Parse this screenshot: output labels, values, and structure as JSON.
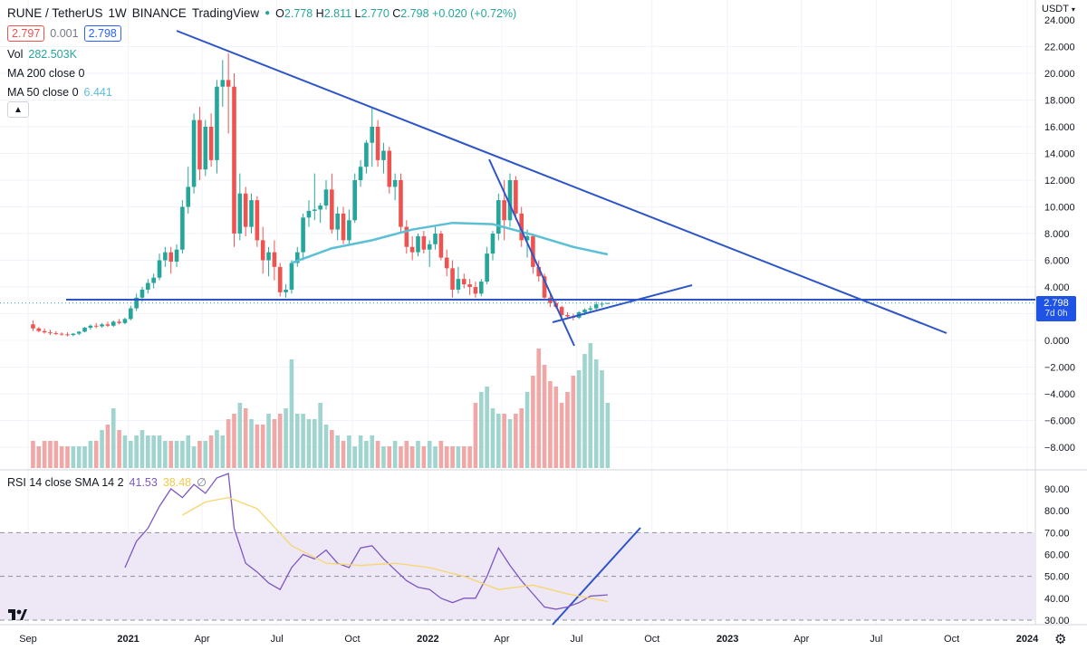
{
  "header": {
    "symbol": "RUNE / TetherUS",
    "interval": "1W",
    "exchange": "BINANCE",
    "source": "TradingView",
    "ohlc": {
      "o_label": "O",
      "o": "2.778",
      "h_label": "H",
      "h": "2.811",
      "l_label": "L",
      "l": "2.770",
      "c_label": "C",
      "c": "2.798",
      "change": "+0.020 (+0.72%)"
    },
    "bid": "2.797",
    "spread": "0.001",
    "ask": "2.798"
  },
  "indicators": {
    "vol_label": "Vol",
    "vol_value": "282.503K",
    "ma200_label": "MA 200 close 0",
    "ma50_label": "MA 50 close 0",
    "ma50_value": "6.441",
    "rsi_label": "RSI 14 close SMA 14 2",
    "rsi_value": "41.53",
    "rsi_sma_value": "38.48",
    "rsi_na": "∅"
  },
  "price_axis": {
    "currency": "USDT",
    "ticks": [
      "24.000",
      "22.000",
      "20.000",
      "18.000",
      "16.000",
      "14.000",
      "12.000",
      "10.000",
      "8.000",
      "6.000",
      "4.000",
      "2.000",
      "0.000",
      "−2.000",
      "−4.000",
      "−6.000",
      "−8.000"
    ],
    "last_price": "2.798",
    "countdown": "7d 0h"
  },
  "rsi_axis": {
    "ticks": [
      "90.00",
      "80.00",
      "70.00",
      "60.00",
      "50.00",
      "40.00",
      "30.00"
    ]
  },
  "time_axis": {
    "labels": [
      "Sep",
      "2021",
      "Apr",
      "Jul",
      "Oct",
      "2022",
      "Apr",
      "Jul",
      "Oct",
      "2023",
      "Apr",
      "Jul",
      "Oct",
      "2024"
    ]
  },
  "colors": {
    "up": "#26a69a",
    "down": "#ef5350",
    "vol_up": "#9fd4cf",
    "vol_down": "#f0a7a5",
    "ma50": "#5bc0d6",
    "trend": "#2d55c8",
    "rsi": "#7e57c2",
    "rsi_sma": "#f5d76e",
    "rsi_band": "#ede7f6"
  },
  "chart_data": [
    {
      "type": "candlestick",
      "interval": "1W",
      "ylim": [
        -9,
        24
      ],
      "candles": [
        {
          "date": "2020-09-07",
          "o": 1.2,
          "h": 1.5,
          "l": 0.7,
          "c": 0.9
        },
        {
          "date": "2020-09-14",
          "o": 0.9,
          "h": 1.0,
          "l": 0.6,
          "c": 0.7
        },
        {
          "date": "2020-09-21",
          "o": 0.7,
          "h": 0.9,
          "l": 0.5,
          "c": 0.6
        },
        {
          "date": "2020-09-28",
          "o": 0.6,
          "h": 0.8,
          "l": 0.4,
          "c": 0.55
        },
        {
          "date": "2020-10-05",
          "o": 0.55,
          "h": 0.7,
          "l": 0.4,
          "c": 0.5
        },
        {
          "date": "2020-10-12",
          "o": 0.5,
          "h": 0.6,
          "l": 0.35,
          "c": 0.45
        },
        {
          "date": "2020-10-19",
          "o": 0.45,
          "h": 0.6,
          "l": 0.3,
          "c": 0.4
        },
        {
          "date": "2020-10-26",
          "o": 0.4,
          "h": 0.55,
          "l": 0.3,
          "c": 0.5
        },
        {
          "date": "2020-11-02",
          "o": 0.5,
          "h": 0.7,
          "l": 0.4,
          "c": 0.65
        },
        {
          "date": "2020-11-09",
          "o": 0.65,
          "h": 1.0,
          "l": 0.6,
          "c": 0.95
        },
        {
          "date": "2020-11-16",
          "o": 0.95,
          "h": 1.2,
          "l": 0.8,
          "c": 1.1
        },
        {
          "date": "2020-11-23",
          "o": 1.1,
          "h": 1.3,
          "l": 0.9,
          "c": 1.05
        },
        {
          "date": "2020-11-30",
          "o": 1.05,
          "h": 1.3,
          "l": 0.95,
          "c": 1.2
        },
        {
          "date": "2020-12-07",
          "o": 1.2,
          "h": 1.4,
          "l": 1.0,
          "c": 1.1
        },
        {
          "date": "2020-12-14",
          "o": 1.1,
          "h": 1.5,
          "l": 1.0,
          "c": 1.4
        },
        {
          "date": "2020-12-21",
          "o": 1.4,
          "h": 1.6,
          "l": 1.2,
          "c": 1.3
        },
        {
          "date": "2020-12-28",
          "o": 1.3,
          "h": 1.7,
          "l": 1.2,
          "c": 1.6
        },
        {
          "date": "2021-01-04",
          "o": 1.6,
          "h": 2.6,
          "l": 1.5,
          "c": 2.4
        },
        {
          "date": "2021-01-11",
          "o": 2.4,
          "h": 3.5,
          "l": 2.2,
          "c": 3.2
        },
        {
          "date": "2021-01-18",
          "o": 3.2,
          "h": 4.0,
          "l": 2.9,
          "c": 3.8
        },
        {
          "date": "2021-01-25",
          "o": 3.8,
          "h": 4.6,
          "l": 3.5,
          "c": 4.3
        },
        {
          "date": "2021-02-01",
          "o": 4.3,
          "h": 5.0,
          "l": 3.9,
          "c": 4.7
        },
        {
          "date": "2021-02-08",
          "o": 4.7,
          "h": 6.5,
          "l": 4.5,
          "c": 6.0
        },
        {
          "date": "2021-02-15",
          "o": 6.0,
          "h": 7.0,
          "l": 5.5,
          "c": 6.6
        },
        {
          "date": "2021-02-22",
          "o": 6.6,
          "h": 7.0,
          "l": 5.0,
          "c": 5.9
        },
        {
          "date": "2021-03-01",
          "o": 5.9,
          "h": 7.2,
          "l": 5.5,
          "c": 6.8
        },
        {
          "date": "2021-03-08",
          "o": 6.8,
          "h": 10.5,
          "l": 6.5,
          "c": 10.0
        },
        {
          "date": "2021-03-15",
          "o": 10.0,
          "h": 13.0,
          "l": 9.5,
          "c": 11.5
        },
        {
          "date": "2021-03-22",
          "o": 11.5,
          "h": 17.0,
          "l": 11.0,
          "c": 16.5
        },
        {
          "date": "2021-03-29",
          "o": 16.5,
          "h": 17.5,
          "l": 12.0,
          "c": 12.8
        },
        {
          "date": "2021-04-05",
          "o": 12.8,
          "h": 16.5,
          "l": 12.3,
          "c": 16.0
        },
        {
          "date": "2021-04-12",
          "o": 16.0,
          "h": 17.0,
          "l": 13.0,
          "c": 13.5
        },
        {
          "date": "2021-04-19",
          "o": 13.5,
          "h": 19.5,
          "l": 12.5,
          "c": 19.0
        },
        {
          "date": "2021-04-26",
          "o": 19.0,
          "h": 21.0,
          "l": 17.5,
          "c": 19.5
        },
        {
          "date": "2021-05-03",
          "o": 19.5,
          "h": 21.5,
          "l": 15.5,
          "c": 19.0
        },
        {
          "date": "2021-05-10",
          "o": 19.0,
          "h": 20.0,
          "l": 7.0,
          "c": 8.0
        },
        {
          "date": "2021-05-17",
          "o": 8.0,
          "h": 12.5,
          "l": 7.5,
          "c": 11.0
        },
        {
          "date": "2021-05-24",
          "o": 11.0,
          "h": 11.5,
          "l": 7.8,
          "c": 8.5
        },
        {
          "date": "2021-05-31",
          "o": 8.5,
          "h": 11.0,
          "l": 8.0,
          "c": 10.5
        },
        {
          "date": "2021-06-07",
          "o": 10.5,
          "h": 10.8,
          "l": 7.0,
          "c": 7.5
        },
        {
          "date": "2021-06-14",
          "o": 7.5,
          "h": 8.5,
          "l": 5.0,
          "c": 6.0
        },
        {
          "date": "2021-06-21",
          "o": 6.0,
          "h": 7.0,
          "l": 4.8,
          "c": 6.6
        },
        {
          "date": "2021-06-28",
          "o": 6.6,
          "h": 7.5,
          "l": 4.5,
          "c": 5.5
        },
        {
          "date": "2021-07-05",
          "o": 5.5,
          "h": 5.8,
          "l": 3.3,
          "c": 3.6
        },
        {
          "date": "2021-07-12",
          "o": 3.6,
          "h": 4.2,
          "l": 3.2,
          "c": 3.8
        },
        {
          "date": "2021-07-19",
          "o": 3.8,
          "h": 6.0,
          "l": 3.5,
          "c": 5.8
        },
        {
          "date": "2021-07-26",
          "o": 5.8,
          "h": 7.0,
          "l": 5.5,
          "c": 6.6
        },
        {
          "date": "2021-08-02",
          "o": 6.6,
          "h": 9.5,
          "l": 6.0,
          "c": 9.2
        },
        {
          "date": "2021-08-09",
          "o": 9.2,
          "h": 10.5,
          "l": 8.5,
          "c": 9.7
        },
        {
          "date": "2021-08-16",
          "o": 9.7,
          "h": 12.5,
          "l": 9.0,
          "c": 9.8
        },
        {
          "date": "2021-08-23",
          "o": 9.8,
          "h": 10.3,
          "l": 8.8,
          "c": 10.1
        },
        {
          "date": "2021-08-30",
          "o": 10.1,
          "h": 12.0,
          "l": 9.8,
          "c": 11.3
        },
        {
          "date": "2021-09-06",
          "o": 11.3,
          "h": 12.5,
          "l": 8.0,
          "c": 8.3
        },
        {
          "date": "2021-09-13",
          "o": 8.3,
          "h": 10.0,
          "l": 7.5,
          "c": 9.5
        },
        {
          "date": "2021-09-20",
          "o": 9.5,
          "h": 10.0,
          "l": 7.2,
          "c": 7.5
        },
        {
          "date": "2021-09-27",
          "o": 7.5,
          "h": 9.8,
          "l": 7.2,
          "c": 9.0
        },
        {
          "date": "2021-10-04",
          "o": 9.0,
          "h": 12.5,
          "l": 8.8,
          "c": 12.0
        },
        {
          "date": "2021-10-11",
          "o": 12.0,
          "h": 13.5,
          "l": 11.5,
          "c": 13.0
        },
        {
          "date": "2021-10-18",
          "o": 13.0,
          "h": 15.0,
          "l": 12.5,
          "c": 14.8
        },
        {
          "date": "2021-10-25",
          "o": 14.8,
          "h": 17.5,
          "l": 13.0,
          "c": 16.0
        },
        {
          "date": "2021-11-01",
          "o": 16.0,
          "h": 16.5,
          "l": 13.0,
          "c": 13.5
        },
        {
          "date": "2021-11-08",
          "o": 13.5,
          "h": 14.8,
          "l": 12.5,
          "c": 14.2
        },
        {
          "date": "2021-11-15",
          "o": 14.2,
          "h": 14.5,
          "l": 11.0,
          "c": 11.5
        },
        {
          "date": "2021-11-22",
          "o": 11.5,
          "h": 12.5,
          "l": 10.5,
          "c": 12.0
        },
        {
          "date": "2021-11-29",
          "o": 12.0,
          "h": 12.5,
          "l": 8.0,
          "c": 8.5
        },
        {
          "date": "2021-12-06",
          "o": 8.5,
          "h": 9.0,
          "l": 6.5,
          "c": 7.0
        },
        {
          "date": "2021-12-13",
          "o": 7.0,
          "h": 7.8,
          "l": 6.0,
          "c": 6.6
        },
        {
          "date": "2021-12-20",
          "o": 6.6,
          "h": 8.0,
          "l": 6.3,
          "c": 7.8
        },
        {
          "date": "2021-12-27",
          "o": 7.8,
          "h": 8.2,
          "l": 6.5,
          "c": 6.8
        },
        {
          "date": "2022-01-03",
          "o": 6.8,
          "h": 7.5,
          "l": 5.5,
          "c": 7.2
        },
        {
          "date": "2022-01-10",
          "o": 7.2,
          "h": 8.5,
          "l": 6.8,
          "c": 8.0
        },
        {
          "date": "2022-01-17",
          "o": 8.0,
          "h": 8.2,
          "l": 6.0,
          "c": 6.2
        },
        {
          "date": "2022-01-24",
          "o": 6.2,
          "h": 6.8,
          "l": 4.8,
          "c": 5.4
        },
        {
          "date": "2022-01-31",
          "o": 5.4,
          "h": 6.0,
          "l": 3.2,
          "c": 3.8
        },
        {
          "date": "2022-02-07",
          "o": 3.8,
          "h": 5.5,
          "l": 3.5,
          "c": 4.6
        },
        {
          "date": "2022-02-14",
          "o": 4.6,
          "h": 5.0,
          "l": 3.9,
          "c": 4.2
        },
        {
          "date": "2022-02-21",
          "o": 4.2,
          "h": 4.6,
          "l": 3.4,
          "c": 4.0
        },
        {
          "date": "2022-02-28",
          "o": 4.0,
          "h": 4.4,
          "l": 3.2,
          "c": 3.5
        },
        {
          "date": "2022-03-07",
          "o": 3.5,
          "h": 4.6,
          "l": 3.3,
          "c": 4.4
        },
        {
          "date": "2022-03-14",
          "o": 4.4,
          "h": 7.0,
          "l": 4.2,
          "c": 6.5
        },
        {
          "date": "2022-03-21",
          "o": 6.5,
          "h": 8.2,
          "l": 6.0,
          "c": 8.0
        },
        {
          "date": "2022-03-28",
          "o": 8.0,
          "h": 11.0,
          "l": 7.5,
          "c": 10.5
        },
        {
          "date": "2022-04-04",
          "o": 10.5,
          "h": 12.0,
          "l": 7.5,
          "c": 9.0
        },
        {
          "date": "2022-04-11",
          "o": 9.0,
          "h": 12.5,
          "l": 8.5,
          "c": 12.0
        },
        {
          "date": "2022-04-18",
          "o": 12.0,
          "h": 12.3,
          "l": 9.0,
          "c": 9.5
        },
        {
          "date": "2022-04-25",
          "o": 9.5,
          "h": 10.0,
          "l": 7.0,
          "c": 7.5
        },
        {
          "date": "2022-05-02",
          "o": 7.5,
          "h": 8.3,
          "l": 6.2,
          "c": 7.8
        },
        {
          "date": "2022-05-09",
          "o": 7.8,
          "h": 8.0,
          "l": 5.0,
          "c": 5.5
        },
        {
          "date": "2022-05-16",
          "o": 5.5,
          "h": 6.0,
          "l": 4.4,
          "c": 4.8
        },
        {
          "date": "2022-05-23",
          "o": 4.8,
          "h": 5.0,
          "l": 3.0,
          "c": 3.2
        },
        {
          "date": "2022-05-30",
          "o": 3.2,
          "h": 3.6,
          "l": 2.5,
          "c": 2.8
        },
        {
          "date": "2022-06-06",
          "o": 2.8,
          "h": 3.0,
          "l": 2.4,
          "c": 2.5
        },
        {
          "date": "2022-06-13",
          "o": 2.5,
          "h": 2.6,
          "l": 1.7,
          "c": 1.9
        },
        {
          "date": "2022-06-20",
          "o": 1.9,
          "h": 2.1,
          "l": 1.6,
          "c": 1.8
        },
        {
          "date": "2022-06-27",
          "o": 1.8,
          "h": 2.0,
          "l": 1.5,
          "c": 1.7
        },
        {
          "date": "2022-07-04",
          "o": 1.7,
          "h": 2.2,
          "l": 1.6,
          "c": 2.1
        },
        {
          "date": "2022-07-11",
          "o": 2.1,
          "h": 2.4,
          "l": 1.9,
          "c": 2.3
        },
        {
          "date": "2022-07-18",
          "o": 2.3,
          "h": 2.6,
          "l": 2.1,
          "c": 2.4
        },
        {
          "date": "2022-07-25",
          "o": 2.4,
          "h": 2.9,
          "l": 2.3,
          "c": 2.7
        },
        {
          "date": "2022-08-01",
          "o": 2.7,
          "h": 2.9,
          "l": 2.5,
          "c": 2.75
        },
        {
          "date": "2022-08-08",
          "o": 2.778,
          "h": 2.811,
          "l": 2.77,
          "c": 2.798
        }
      ],
      "volume_relative": [
        0.25,
        0.2,
        0.25,
        0.25,
        0.25,
        0.2,
        0.2,
        0.2,
        0.2,
        0.2,
        0.25,
        0.25,
        0.35,
        0.4,
        0.55,
        0.35,
        0.3,
        0.25,
        0.3,
        0.35,
        0.3,
        0.3,
        0.3,
        0.25,
        0.25,
        0.25,
        0.25,
        0.3,
        0.2,
        0.25,
        0.25,
        0.3,
        0.35,
        0.3,
        0.45,
        0.5,
        0.6,
        0.55,
        0.45,
        0.4,
        0.4,
        0.5,
        0.45,
        0.5,
        0.55,
        1.0,
        0.5,
        0.5,
        0.45,
        0.45,
        0.6,
        0.4,
        0.35,
        0.3,
        0.25,
        0.3,
        0.2,
        0.3,
        0.25,
        0.3,
        0.25,
        0.2,
        0.2,
        0.25,
        0.2,
        0.25,
        0.2,
        0.25,
        0.2,
        0.25,
        0.2,
        0.25,
        0.2,
        0.2,
        0.2,
        0.2,
        0.2,
        0.6,
        0.7,
        0.75,
        0.55,
        0.5,
        0.5,
        0.45,
        0.5,
        0.55,
        0.7,
        0.85,
        1.1,
        0.95,
        0.8,
        0.75,
        0.6,
        0.7,
        0.85,
        0.9,
        1.05,
        1.15,
        1.0,
        0.9,
        0.6
      ]
    },
    {
      "type": "line",
      "name": "MA 50 close 0",
      "x": [
        "2021-07-19",
        "2021-09-06",
        "2021-10-25",
        "2021-12-13",
        "2022-01-31",
        "2022-03-21",
        "2022-05-09",
        "2022-06-27",
        "2022-08-08"
      ],
      "values": [
        5.8,
        6.9,
        7.5,
        8.3,
        8.8,
        8.7,
        7.9,
        7.0,
        6.441
      ]
    },
    {
      "type": "line",
      "title": "RSI 14 close SMA 14 2",
      "ylim": [
        28,
        97
      ],
      "series": [
        {
          "name": "RSI",
          "x": [
            "2020-12-28",
            "2021-01-11",
            "2021-01-25",
            "2021-02-08",
            "2021-02-22",
            "2021-03-08",
            "2021-03-22",
            "2021-04-05",
            "2021-04-19",
            "2021-05-03",
            "2021-05-10",
            "2021-05-24",
            "2021-06-07",
            "2021-06-21",
            "2021-07-05",
            "2021-07-19",
            "2021-08-02",
            "2021-08-16",
            "2021-08-30",
            "2021-09-13",
            "2021-09-27",
            "2021-10-11",
            "2021-10-25",
            "2021-11-08",
            "2021-11-22",
            "2021-12-06",
            "2021-12-20",
            "2022-01-03",
            "2022-01-17",
            "2022-01-31",
            "2022-02-14",
            "2022-02-28",
            "2022-03-14",
            "2022-03-28",
            "2022-04-11",
            "2022-04-25",
            "2022-05-09",
            "2022-05-23",
            "2022-06-06",
            "2022-06-20",
            "2022-07-04",
            "2022-07-18",
            "2022-08-08"
          ],
          "values": [
            54,
            66,
            72,
            82,
            90,
            86,
            92,
            88,
            95,
            97,
            72,
            56,
            52,
            47,
            44,
            54,
            60,
            58,
            62,
            56,
            54,
            63,
            64,
            58,
            53,
            48,
            45,
            44,
            40,
            38,
            40,
            40,
            50,
            63,
            55,
            48,
            42,
            36,
            35,
            36,
            38,
            41,
            41.53
          ]
        },
        {
          "name": "RSI-based MA",
          "x": [
            "2021-03-08",
            "2021-04-05",
            "2021-05-03",
            "2021-06-07",
            "2021-07-19",
            "2021-08-30",
            "2021-10-11",
            "2021-11-22",
            "2022-01-03",
            "2022-02-14",
            "2022-03-28",
            "2022-05-09",
            "2022-06-20",
            "2022-08-08"
          ],
          "values": [
            78,
            84,
            86,
            81,
            64,
            56,
            55,
            56,
            54,
            50,
            44,
            46,
            42,
            38.48
          ]
        }
      ]
    }
  ]
}
